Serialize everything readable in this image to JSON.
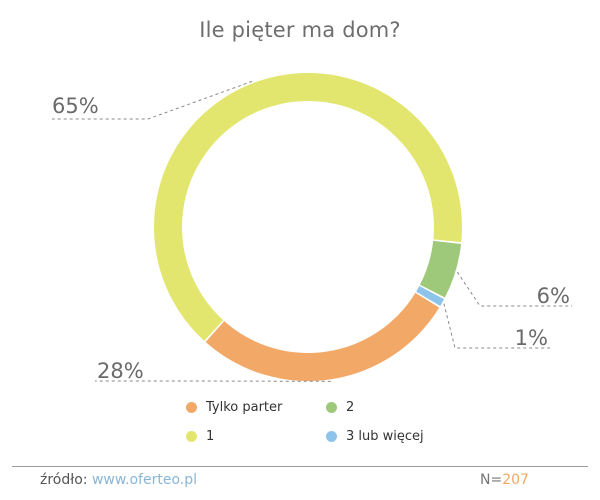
{
  "chart_data": {
    "type": "pie",
    "title": "Ile pięter ma dom?",
    "donut": true,
    "start_category": "2",
    "slices": [
      {
        "label": "2",
        "value": 6,
        "display": "6%",
        "color": "#9fc97a"
      },
      {
        "label": "3 lub więcej",
        "value": 1,
        "display": "1%",
        "color": "#8ec3ea"
      },
      {
        "label": "Tylko parter",
        "value": 28,
        "display": "28%",
        "color": "#f2a968"
      },
      {
        "label": "1",
        "value": 65,
        "display": "65%",
        "color": "#e2e66e"
      }
    ]
  },
  "legend": {
    "items": [
      {
        "label": "Tylko parter",
        "color": "#f2a968"
      },
      {
        "label": "2",
        "color": "#9fc97a"
      },
      {
        "label": "1",
        "color": "#e2e66e"
      },
      {
        "label": "3 lub więcej",
        "color": "#8ec3ea"
      }
    ]
  },
  "footer": {
    "source_label": "źródło:",
    "source_link": "www.oferteo.pl",
    "n_label": "N=",
    "n_value": "207"
  }
}
